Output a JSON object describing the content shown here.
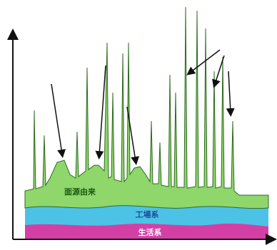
{
  "areas": [
    {
      "label": "面源由来"
    },
    {
      "label": "工場系"
    },
    {
      "label": "生活系"
    }
  ]
}
